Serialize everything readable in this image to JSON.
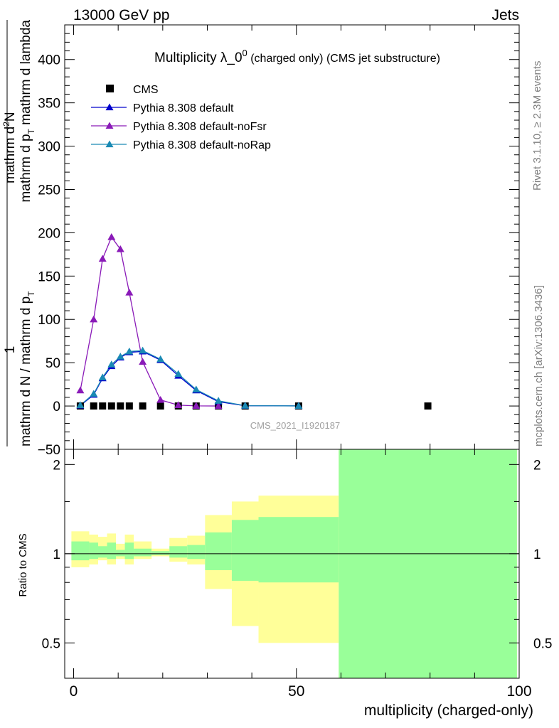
{
  "header": {
    "left": "13000 GeV pp",
    "right": "Jets"
  },
  "side_labels": {
    "rivet": "Rivet 3.1.10, ≥ 2.3M events",
    "mcplots": "mcplots.cern.ch [arXiv:1306.3436]"
  },
  "watermark": "CMS_2021_I1920187",
  "colors": {
    "cms": "#000000",
    "default": "#0000cc",
    "noFsr": "#8a1ab8",
    "noRap": "#1a8ab4",
    "band_outer": "#ffff99",
    "band_inner": "#99ff99"
  },
  "chart_data": [
    {
      "type": "line",
      "title_main": "Multiplicity λ_0",
      "title_sup": "0",
      "title_suffix": " (charged only) (CMS jet substructure)",
      "xlabel": "multiplicity (charged-only)",
      "ylabel_parts": {
        "numerator": "mathrm d",
        "numerator_sup": "2",
        "numerator_rest": "N",
        "denominator": "mathrm d p",
        "denominator_sub": "T",
        "denominator_rest": " mathrm d lambda",
        "prefix_top": "1",
        "prefix_bottom": "mathrm d N / mathrm d p",
        "prefix_bottom_sub": "T"
      },
      "xlim": [
        -2,
        100
      ],
      "ylim": [
        -50,
        440
      ],
      "yticks": [
        "−50",
        "0",
        "50",
        "100",
        "150",
        "200",
        "250",
        "300",
        "350",
        "400"
      ],
      "ytick_values": [
        -50,
        0,
        50,
        100,
        150,
        200,
        250,
        300,
        350,
        400
      ],
      "legend": [
        "CMS",
        "Pythia 8.308 default",
        "Pythia 8.308 default-noFsr",
        "Pythia 8.308 default-noRap"
      ],
      "series": [
        {
          "name": "CMS",
          "marker": "square",
          "x": [
            1.5,
            4.5,
            6.5,
            8.5,
            10.5,
            12.5,
            15.5,
            19.5,
            23.5,
            27.5,
            32.5,
            38.5,
            50.5,
            79.5
          ],
          "y": [
            0,
            0,
            0,
            0,
            0,
            0,
            0,
            0,
            0,
            0,
            0,
            0,
            0,
            0
          ]
        },
        {
          "name": "Pythia 8.308 default",
          "marker": "triangle",
          "x": [
            1.5,
            4.5,
            6.5,
            8.5,
            10.5,
            12.5,
            15.5,
            19.5,
            23.5,
            27.5,
            32.5,
            38.5,
            50.5
          ],
          "y": [
            0.5,
            13,
            32,
            46,
            56,
            62,
            63,
            53,
            35,
            18,
            5,
            0.3,
            0.1
          ]
        },
        {
          "name": "Pythia 8.308 default-noFsr",
          "marker": "triangle",
          "x": [
            1.5,
            4.5,
            6.5,
            8.5,
            10.5,
            12.5,
            15.5,
            19.5,
            23.5,
            27.5,
            32.5
          ],
          "y": [
            18,
            100,
            170,
            195,
            181,
            131,
            51,
            7,
            1,
            0.2,
            0
          ]
        },
        {
          "name": "Pythia 8.308 default-noRap",
          "marker": "triangle",
          "x": [
            1.5,
            4.5,
            6.5,
            8.5,
            10.5,
            12.5,
            15.5,
            19.5,
            23.5,
            27.5,
            32.5,
            38.5,
            50.5
          ],
          "y": [
            1,
            14,
            33,
            48,
            57,
            63,
            64,
            54,
            37,
            19,
            6,
            0.4,
            0.1
          ]
        }
      ]
    },
    {
      "type": "area",
      "ylabel": "Ratio to CMS",
      "xlim": [
        -2,
        100
      ],
      "ylim": [
        0.38,
        2.25
      ],
      "xticks": [
        "0",
        "50",
        "100"
      ],
      "xtick_values": [
        0,
        50,
        100
      ],
      "yticks": [
        "0.5",
        "1",
        "2"
      ],
      "ytick_values": [
        0.5,
        1,
        2
      ],
      "reference_line": 1,
      "bins": [
        {
          "lo": -0.5,
          "hi": 3.5,
          "outer": [
            0.9,
            1.19
          ],
          "inner": [
            0.95,
            1.1
          ]
        },
        {
          "lo": 3.5,
          "hi": 5.5,
          "outer": [
            0.92,
            1.16
          ],
          "inner": [
            0.96,
            1.09
          ]
        },
        {
          "lo": 5.5,
          "hi": 7.5,
          "outer": [
            0.95,
            1.14
          ],
          "inner": [
            0.97,
            1.06
          ]
        },
        {
          "lo": 7.5,
          "hi": 9.5,
          "outer": [
            0.92,
            1.17
          ],
          "inner": [
            0.96,
            1.09
          ]
        },
        {
          "lo": 9.5,
          "hi": 11.5,
          "outer": [
            0.96,
            1.08
          ],
          "inner": [
            0.98,
            1.03
          ]
        },
        {
          "lo": 11.5,
          "hi": 13.5,
          "outer": [
            0.92,
            1.16
          ],
          "inner": [
            0.96,
            1.09
          ]
        },
        {
          "lo": 13.5,
          "hi": 17.5,
          "outer": [
            0.96,
            1.1
          ],
          "inner": [
            0.98,
            1.04
          ]
        },
        {
          "lo": 17.5,
          "hi": 21.5,
          "outer": [
            0.98,
            1.04
          ],
          "inner": [
            0.99,
            1.02
          ]
        },
        {
          "lo": 21.5,
          "hi": 25.5,
          "outer": [
            0.94,
            1.13
          ],
          "inner": [
            0.97,
            1.06
          ]
        },
        {
          "lo": 25.5,
          "hi": 29.5,
          "outer": [
            0.92,
            1.15
          ],
          "inner": [
            0.96,
            1.07
          ]
        },
        {
          "lo": 29.5,
          "hi": 35.5,
          "outer": [
            0.76,
            1.35
          ],
          "inner": [
            0.88,
            1.18
          ]
        },
        {
          "lo": 35.5,
          "hi": 41.5,
          "outer": [
            0.57,
            1.5
          ],
          "inner": [
            0.81,
            1.3
          ]
        },
        {
          "lo": 41.5,
          "hi": 59.5,
          "outer": [
            0.5,
            1.57
          ],
          "inner": [
            0.8,
            1.33
          ]
        },
        {
          "lo": 59.5,
          "hi": 99.5,
          "outer": [
            0.3,
            2.4
          ],
          "inner": [
            0.3,
            2.4
          ]
        }
      ]
    }
  ]
}
